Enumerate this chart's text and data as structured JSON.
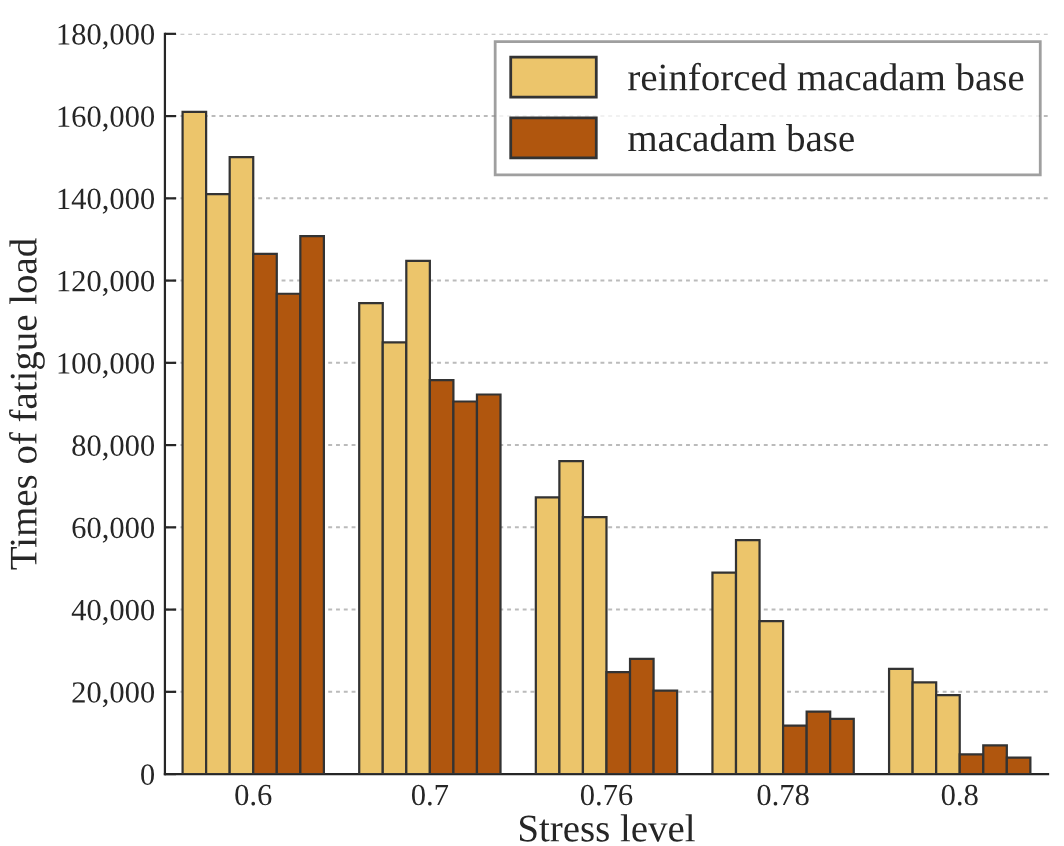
{
  "chart_data": {
    "type": "bar",
    "xlabel": "Stress level",
    "ylabel": "Times of fatigue load",
    "categories": [
      "0.6",
      "0.7",
      "0.76",
      "0.78",
      "0.8"
    ],
    "series": [
      {
        "name": "reinforced macadam base",
        "color": "#ecc56b",
        "values": [
          161000,
          114500,
          67300,
          49000,
          25600
        ]
      },
      {
        "color": "#ecc56b",
        "values": [
          141000,
          105000,
          76100,
          56900,
          22300
        ]
      },
      {
        "color": "#ecc56b",
        "values": [
          150000,
          124800,
          62500,
          37200,
          19200
        ]
      },
      {
        "name": "macadam base",
        "color": "#b0560e",
        "values": [
          126500,
          95800,
          24800,
          11800,
          4800
        ]
      },
      {
        "color": "#b0560e",
        "values": [
          116800,
          90600,
          28000,
          15200,
          7000
        ]
      },
      {
        "color": "#b0560e",
        "values": [
          130800,
          92300,
          20300,
          13400,
          4000
        ]
      }
    ],
    "ylim": [
      0,
      180000
    ],
    "yticks": [
      {
        "value": 0,
        "label": "0"
      },
      {
        "value": 20000,
        "label": "20,000"
      },
      {
        "value": 40000,
        "label": "40,000"
      },
      {
        "value": 60000,
        "label": "60,000"
      },
      {
        "value": 80000,
        "label": "80,000"
      },
      {
        "value": 100000,
        "label": "100,000"
      },
      {
        "value": 120000,
        "label": "120,000"
      },
      {
        "value": 140000,
        "label": "140,000"
      },
      {
        "value": 160000,
        "label": "160,000"
      },
      {
        "value": 180000,
        "label": "180,000"
      }
    ],
    "grid": "y",
    "legend": "top right"
  }
}
